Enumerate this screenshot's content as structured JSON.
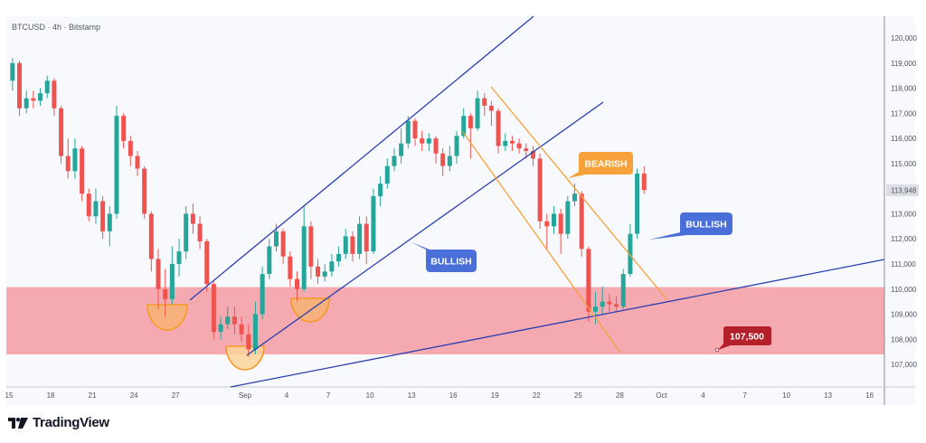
{
  "header": {
    "title": "BTCUSD · 4h · Bitstamp"
  },
  "branding": {
    "name": "TradingView"
  },
  "colors": {
    "up": "#26a69a",
    "down": "#ef5350",
    "channel": "#2a3fb0",
    "bearish": "#f7a13b",
    "zone": "#f5a9b0",
    "bullish_label": "#4a6fd8",
    "level_label": "#b3202a"
  },
  "annotations": {
    "bearish": "BEARISH",
    "bullish_channel": "BULLISH",
    "bullish_right": "BULLISH",
    "level": "107,500"
  },
  "chart_data": {
    "type": "candlestick",
    "symbol": "BTCUSD",
    "timeframe": "4h",
    "exchange": "Bitstamp",
    "last_price": "113,948",
    "ylim": [
      106000,
      121000
    ],
    "y_ticks": [
      "120,000",
      "119,000",
      "118,000",
      "117,000",
      "116,000",
      "115,000",
      "113,000",
      "112,000",
      "111,000",
      "110,000",
      "109,000",
      "108,000",
      "107,000"
    ],
    "y_tick_values": [
      120000,
      119000,
      118000,
      117000,
      116000,
      115000,
      113000,
      112000,
      111000,
      110000,
      109000,
      108000,
      107000
    ],
    "x_ticks": [
      "15",
      "18",
      "21",
      "24",
      "27",
      "Sep",
      "4",
      "7",
      "10",
      "13",
      "16",
      "19",
      "22",
      "25",
      "28",
      "Oct",
      "4",
      "7",
      "10",
      "13",
      "16"
    ],
    "support_zone": [
      107400,
      110080
    ],
    "grid": false,
    "candles_ohlc": [
      [
        "Aug 15 00",
        118300,
        119200,
        117900,
        119000
      ],
      [
        "Aug 15 12",
        119000,
        119100,
        116900,
        117200
      ],
      [
        "Aug 16 00",
        117200,
        117900,
        117000,
        117600
      ],
      [
        "Aug 16 12",
        117600,
        117900,
        117200,
        117500
      ],
      [
        "Aug 17 00",
        117500,
        118000,
        117300,
        117800
      ],
      [
        "Aug 17 12",
        117800,
        118500,
        117600,
        118300
      ],
      [
        "Aug 18 00",
        118300,
        118400,
        116900,
        117200
      ],
      [
        "Aug 18 12",
        117200,
        117300,
        115000,
        115300
      ],
      [
        "Aug 19 00",
        115300,
        116000,
        114400,
        114700
      ],
      [
        "Aug 19 12",
        114700,
        116000,
        114400,
        115600
      ],
      [
        "Aug 20 00",
        115600,
        115700,
        113500,
        113800
      ],
      [
        "Aug 20 12",
        113800,
        114000,
        112700,
        112900
      ],
      [
        "Aug 21 00",
        112900,
        114000,
        112600,
        113500
      ],
      [
        "Aug 21 12",
        113500,
        113700,
        112000,
        112300
      ],
      [
        "Aug 22 00",
        112300,
        113300,
        111700,
        113000
      ],
      [
        "Aug 22 12",
        113000,
        117300,
        112800,
        116900
      ],
      [
        "Aug 23 00",
        116900,
        117000,
        115600,
        115900
      ],
      [
        "Aug 23 12",
        115900,
        116100,
        114900,
        115300
      ],
      [
        "Aug 24 00",
        115300,
        115500,
        114500,
        114800
      ],
      [
        "Aug 24 12",
        114800,
        114900,
        112800,
        113000
      ],
      [
        "Aug 25 00",
        113000,
        113100,
        110700,
        111200
      ],
      [
        "Aug 25 12",
        111200,
        111600,
        109200,
        110000
      ],
      [
        "Aug 26 00",
        110000,
        110800,
        108900,
        109600
      ],
      [
        "Aug 26 12",
        109600,
        111700,
        109400,
        111000
      ],
      [
        "Aug 27 00",
        111000,
        112000,
        110500,
        111500
      ],
      [
        "Aug 27 12",
        111500,
        113300,
        111200,
        113000
      ],
      [
        "Aug 28 00",
        113000,
        113400,
        112200,
        112600
      ],
      [
        "Aug 28 12",
        112600,
        112900,
        111600,
        111900
      ],
      [
        "Aug 29 00",
        111900,
        112000,
        109900,
        110200
      ],
      [
        "Aug 29 12",
        110200,
        110300,
        108000,
        108300
      ],
      [
        "Aug 30 00",
        108300,
        108900,
        108000,
        108600
      ],
      [
        "Aug 30 12",
        108600,
        109300,
        108400,
        108900
      ],
      [
        "Aug 31 00",
        108900,
        109300,
        108200,
        108600
      ],
      [
        "Aug 31 12",
        108600,
        108900,
        107900,
        108200
      ],
      [
        "Sep 01 00",
        108200,
        108600,
        107300,
        107600
      ],
      [
        "Sep 01 12",
        107600,
        109500,
        107400,
        109000
      ],
      [
        "Sep 02 00",
        109000,
        110900,
        108800,
        110600
      ],
      [
        "Sep 02 12",
        110600,
        112000,
        110400,
        111700
      ],
      [
        "Sep 03 00",
        111700,
        112600,
        111500,
        112300
      ],
      [
        "Sep 03 12",
        112300,
        112400,
        111000,
        111300
      ],
      [
        "Sep 04 00",
        111300,
        111500,
        110100,
        110400
      ],
      [
        "Sep 04 12",
        110400,
        110700,
        109500,
        110000
      ],
      [
        "Sep 05 00",
        110000,
        113300,
        109900,
        112500
      ],
      [
        "Sep 05 12",
        112500,
        112700,
        110400,
        110900
      ],
      [
        "Sep 06 00",
        110900,
        111200,
        110200,
        110500
      ],
      [
        "Sep 06 12",
        110500,
        111000,
        110300,
        110700
      ],
      [
        "Sep 07 00",
        110700,
        111400,
        110500,
        111100
      ],
      [
        "Sep 07 12",
        111100,
        111700,
        110900,
        111400
      ],
      [
        "Sep 08 00",
        111400,
        112400,
        111200,
        112100
      ],
      [
        "Sep 08 12",
        112100,
        112300,
        111100,
        111400
      ],
      [
        "Sep 09 00",
        111400,
        112900,
        111200,
        112600
      ],
      [
        "Sep 09 12",
        112600,
        112900,
        111000,
        111500
      ],
      [
        "Sep 10 00",
        111500,
        114000,
        111400,
        113700
      ],
      [
        "Sep 10 12",
        113700,
        114500,
        113300,
        114200
      ],
      [
        "Sep 11 00",
        114200,
        115200,
        114000,
        114900
      ],
      [
        "Sep 11 12",
        114900,
        115600,
        114700,
        115300
      ],
      [
        "Sep 12 00",
        115300,
        116400,
        115000,
        115800
      ],
      [
        "Sep 12 12",
        115800,
        116900,
        115600,
        116700
      ],
      [
        "Sep 13 00",
        116700,
        116800,
        115700,
        116000
      ],
      [
        "Sep 13 12",
        116000,
        116300,
        115500,
        115800
      ],
      [
        "Sep 14 00",
        115800,
        116200,
        115500,
        116000
      ],
      [
        "Sep 14 12",
        116000,
        116100,
        115000,
        115400
      ],
      [
        "Sep 15 00",
        115400,
        115600,
        114500,
        114900
      ],
      [
        "Sep 15 12",
        114900,
        115700,
        114700,
        115300
      ],
      [
        "Sep 16 00",
        115300,
        116300,
        115000,
        116100
      ],
      [
        "Sep 16 12",
        116100,
        117200,
        116000,
        116900
      ],
      [
        "Sep 17 00",
        116900,
        117000,
        115200,
        116400
      ],
      [
        "Sep 17 12",
        116400,
        117900,
        116300,
        117600
      ],
      [
        "Sep 18 00",
        117600,
        117800,
        116900,
        117300
      ],
      [
        "Sep 18 12",
        117300,
        117500,
        116500,
        117100
      ],
      [
        "Sep 19 00",
        117100,
        117200,
        115400,
        115700
      ],
      [
        "Sep 19 12",
        115700,
        116200,
        115500,
        115900
      ],
      [
        "Sep 20 00",
        115900,
        116100,
        115500,
        115800
      ],
      [
        "Sep 20 12",
        115800,
        116000,
        115400,
        115600
      ],
      [
        "Sep 21 00",
        115600,
        115800,
        115200,
        115500
      ],
      [
        "Sep 21 12",
        115500,
        115700,
        114900,
        115200
      ],
      [
        "Sep 22 00",
        115200,
        115400,
        112400,
        112700
      ],
      [
        "Sep 22 12",
        112700,
        113000,
        111600,
        112500
      ],
      [
        "Sep 23 00",
        112500,
        113300,
        112200,
        113000
      ],
      [
        "Sep 23 12",
        113000,
        113200,
        111400,
        112200
      ],
      [
        "Sep 24 00",
        112200,
        113700,
        112000,
        113500
      ],
      [
        "Sep 24 12",
        113500,
        114200,
        113300,
        113800
      ],
      [
        "Sep 25 00",
        113800,
        113900,
        111300,
        111600
      ],
      [
        "Sep 25 12",
        111600,
        111700,
        108700,
        109100
      ],
      [
        "Sep 26 00",
        109100,
        109900,
        108600,
        109300
      ],
      [
        "Sep 26 12",
        109300,
        110100,
        109000,
        109500
      ],
      [
        "Sep 27 00",
        109500,
        109800,
        109100,
        109400
      ],
      [
        "Sep 27 12",
        109400,
        109700,
        109100,
        109300
      ],
      [
        "Sep 28 00",
        109300,
        110800,
        109200,
        110600
      ],
      [
        "Sep 28 12",
        110600,
        112600,
        110500,
        112200
      ],
      [
        "Sep 29 00",
        112200,
        114800,
        112000,
        114600
      ],
      [
        "Sep 29 12",
        114600,
        114900,
        113800,
        113948
      ]
    ]
  }
}
